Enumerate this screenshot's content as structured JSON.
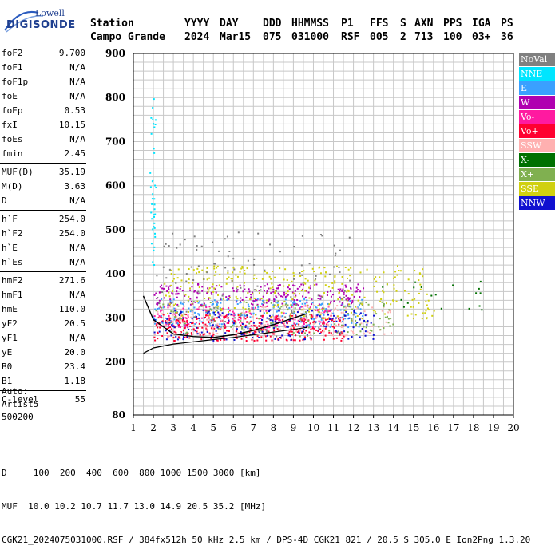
{
  "logo": {
    "line1": "Lowell",
    "line2": "DIGISONDE"
  },
  "header": {
    "labels": {
      "station": "Station",
      "yyyy": "YYYY",
      "day": "DAY",
      "ddd": "DDD",
      "hhmmss": "HHMMSS",
      "p1": "P1",
      "ffs": "FFS",
      "s": "S",
      "axn": "AXN",
      "pps": "PPS",
      "iga": "IGA",
      "ps": "PS"
    },
    "values": {
      "station": "Campo Grande",
      "yyyy": "2024",
      "day": "Mar15",
      "ddd": "075",
      "hhmmss": "031000",
      "p1": "RSF",
      "ffs": "005",
      "s": "2",
      "axn": "713",
      "pps": "100",
      "iga": "03+",
      "ps": "36"
    }
  },
  "params": {
    "group1": [
      {
        "label": "foF2",
        "value": "9.700"
      },
      {
        "label": "foF1",
        "value": "N/A"
      },
      {
        "label": "foF1p",
        "value": "N/A"
      },
      {
        "label": "foE",
        "value": "N/A"
      },
      {
        "label": "foEp",
        "value": "0.53"
      },
      {
        "label": "fxI",
        "value": "10.15"
      },
      {
        "label": "foEs",
        "value": "N/A"
      },
      {
        "label": "fmin",
        "value": "2.45"
      }
    ],
    "group2": [
      {
        "label": "MUF(D)",
        "value": "35.19"
      },
      {
        "label": "M(D)",
        "value": "3.63"
      },
      {
        "label": "D",
        "value": "N/A"
      }
    ],
    "group3": [
      {
        "label": "h`F",
        "value": "254.0"
      },
      {
        "label": "h`F2",
        "value": "254.0"
      },
      {
        "label": "h`E",
        "value": "N/A"
      },
      {
        "label": "h`Es",
        "value": "N/A"
      }
    ],
    "group4": [
      {
        "label": "hmF2",
        "value": "271.6"
      },
      {
        "label": "hmF1",
        "value": "N/A"
      },
      {
        "label": "hmE",
        "value": "110.0"
      },
      {
        "label": "yF2",
        "value": "20.5"
      },
      {
        "label": "yF1",
        "value": "N/A"
      },
      {
        "label": "yE",
        "value": "20.0"
      },
      {
        "label": "B0",
        "value": "23.4"
      },
      {
        "label": "B1",
        "value": "1.18"
      }
    ],
    "group5": [
      {
        "label": "C-level",
        "value": "55"
      }
    ]
  },
  "auto": {
    "line1": "Auto:",
    "line2": "Artist5",
    "line3": "500200"
  },
  "legend": [
    {
      "label": "NoVal",
      "color": "#808080"
    },
    {
      "label": "NNE",
      "color": "#00e5ff"
    },
    {
      "label": "E",
      "color": "#3aa0ff"
    },
    {
      "label": "W",
      "color": "#b000b0"
    },
    {
      "label": "Vo-",
      "color": "#ff1aa0"
    },
    {
      "label": "Vo+",
      "color": "#ff0030"
    },
    {
      "label": "SSW",
      "color": "#ffb0b0"
    },
    {
      "label": "X-",
      "color": "#007000"
    },
    {
      "label": "X+",
      "color": "#80b050"
    },
    {
      "label": "SSE",
      "color": "#d0d010"
    },
    {
      "label": "NNW",
      "color": "#1010d0"
    }
  ],
  "chart_data": {
    "type": "scatter",
    "xlim": [
      1,
      20
    ],
    "ylim": [
      80,
      900
    ],
    "x_ticks": [
      1,
      2,
      3,
      4,
      5,
      6,
      7,
      8,
      9,
      10,
      11,
      12,
      13,
      14,
      15,
      16,
      17,
      18,
      19,
      20
    ],
    "y_ticks": [
      80,
      200,
      300,
      400,
      500,
      600,
      700,
      800,
      900
    ],
    "grid": true,
    "xlabel": "",
    "ylabel": "",
    "trace_upper": {
      "x": [
        1.5,
        2.0,
        3.0,
        4.0,
        5.0,
        6.0,
        7.0,
        8.0,
        9.0,
        9.7
      ],
      "y": [
        350,
        296,
        264,
        258,
        256,
        262,
        272,
        285,
        300,
        310
      ]
    },
    "trace_lower": {
      "x": [
        1.5,
        2.0,
        3.0,
        4.0,
        5.0,
        6.0,
        7.0,
        8.0,
        9.0,
        9.7
      ],
      "y": [
        220,
        232,
        241,
        246,
        251,
        256,
        262,
        268,
        274,
        279
      ]
    },
    "clusters": [
      {
        "color": "#00e5ff",
        "x": [
          1.8,
          2.1
        ],
        "y": [
          420,
          800
        ],
        "n": 40
      },
      {
        "color": "#3aa0ff",
        "x": [
          1.9,
          12.5
        ],
        "y": [
          280,
          345
        ],
        "n": 260
      },
      {
        "color": "#b000b0",
        "x": [
          2.0,
          12.5
        ],
        "y": [
          330,
          380
        ],
        "n": 220
      },
      {
        "color": "#ff1aa0",
        "x": [
          2.0,
          11.0
        ],
        "y": [
          280,
          330
        ],
        "n": 160
      },
      {
        "color": "#ff0030",
        "x": [
          2.0,
          11.5
        ],
        "y": [
          250,
          310
        ],
        "n": 320
      },
      {
        "color": "#ffb0b0",
        "x": [
          2.0,
          14.0
        ],
        "y": [
          260,
          330
        ],
        "n": 150
      },
      {
        "color": "#007000",
        "x": [
          13.0,
          18.5
        ],
        "y": [
          320,
          385
        ],
        "n": 20
      },
      {
        "color": "#80b050",
        "x": [
          2.0,
          14.0
        ],
        "y": [
          260,
          340
        ],
        "n": 140
      },
      {
        "color": "#d0d010",
        "x": [
          2.5,
          16.0
        ],
        "y": [
          300,
          420
        ],
        "n": 300
      },
      {
        "color": "#1010d0",
        "x": [
          2.0,
          13.0
        ],
        "y": [
          250,
          320
        ],
        "n": 180
      },
      {
        "color": "#808080",
        "x": [
          2.0,
          12.0
        ],
        "y": [
          260,
          500
        ],
        "n": 120
      }
    ]
  },
  "footer": {
    "d_row": "D     100  200  400  600  800 1000 1500 3000 [km]",
    "muf_row": "MUF  10.0 10.2 10.7 11.7 13.0 14.9 20.5 35.2 [MHz]",
    "file_row": "CGK21_2024075031000.RSF / 384fx512h 50 kHz 2.5 km / DPS-4D CGK21 821 / 20.5 S 305.0 E Ion2Png 1.3.20"
  }
}
